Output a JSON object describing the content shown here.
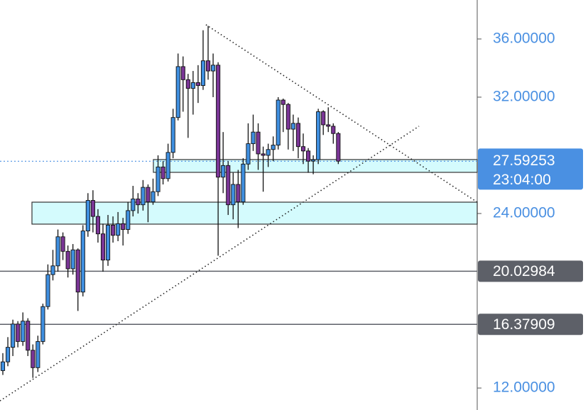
{
  "chart_data": {
    "type": "candlestick",
    "ylim": [
      10.49,
      38.68
    ],
    "yticks": [
      {
        "value": 36,
        "label": "36.00000"
      },
      {
        "value": 32,
        "label": "32.00000"
      },
      {
        "value": 24,
        "label": "24.00000"
      },
      {
        "value": 12,
        "label": "12.00000"
      }
    ],
    "tick_color": "#4a90e2",
    "up_color": "#3f8fe0",
    "down_color": "#7a3596",
    "open": [
      13.2,
      13.8,
      14.8,
      16.4,
      15.2,
      16.6,
      14.6,
      13.4,
      15.2,
      17.6,
      19.8,
      20.4,
      22.4,
      21.4,
      20.2,
      21.5,
      18.6,
      22.8,
      24.9,
      23.8,
      22.6,
      20.8,
      23.2,
      22.5,
      23.3,
      22.9,
      24.2,
      25.0,
      24.6,
      25.8,
      24.8,
      25.5,
      27.2,
      26.4,
      28.2,
      30.6,
      34.1,
      33.2,
      32.6,
      33.0,
      32.8,
      34.5,
      33.8,
      34.2,
      26.5,
      27.3,
      24.6,
      26.0,
      24.8,
      27.4,
      28.8,
      29.6,
      28.1,
      28.0,
      28.4,
      28.7,
      31.8,
      31.5,
      29.8,
      30.2,
      28.6,
      28.3,
      27.6,
      27.7,
      31.0,
      30.1,
      30.0,
      29.5
    ],
    "high": [
      14.4,
      15.5,
      16.7,
      16.6,
      17.2,
      16.8,
      15.0,
      15.6,
      17.8,
      20.5,
      21.5,
      22.9,
      22.7,
      21.8,
      21.9,
      21.6,
      23.2,
      25.4,
      25.6,
      24.3,
      23.3,
      23.9,
      23.8,
      24.1,
      23.7,
      24.8,
      25.9,
      25.4,
      26.3,
      26.0,
      26.4,
      28.0,
      27.6,
      28.8,
      31.2,
      35.0,
      34.8,
      33.6,
      33.8,
      34.2,
      36.6,
      36.9,
      35.0,
      34.4,
      29.6,
      27.6,
      26.8,
      27.0,
      27.8,
      30.2,
      30.8,
      30.2,
      28.6,
      28.8,
      29.3,
      32.0,
      31.9,
      31.6,
      30.8,
      30.6,
      29.5,
      28.5,
      28.0,
      31.2,
      31.1,
      31.3,
      30.2,
      29.6
    ],
    "low": [
      12.9,
      13.5,
      14.2,
      14.8,
      14.9,
      14.2,
      12.7,
      13.1,
      15.0,
      17.4,
      19.4,
      20.0,
      20.8,
      19.6,
      19.8,
      17.3,
      18.3,
      22.4,
      22.7,
      22.0,
      20.0,
      20.4,
      22.0,
      22.1,
      21.8,
      22.6,
      23.8,
      24.0,
      24.2,
      23.4,
      24.6,
      25.2,
      26.0,
      26.2,
      27.8,
      30.4,
      31.0,
      29.2,
      30.8,
      31.6,
      32.5,
      33.2,
      32.0,
      21.1,
      25.4,
      23.9,
      23.6,
      23.0,
      24.6,
      27.0,
      28.3,
      27.0,
      25.5,
      27.2,
      27.6,
      28.4,
      29.6,
      28.4,
      28.3,
      27.8,
      27.4,
      26.8,
      26.7,
      27.4,
      29.4,
      29.6,
      28.8,
      27.4
    ],
    "close": [
      13.8,
      14.8,
      16.4,
      15.2,
      16.6,
      14.6,
      13.4,
      15.2,
      17.6,
      19.8,
      20.4,
      22.4,
      21.4,
      20.2,
      21.5,
      18.6,
      22.8,
      24.9,
      23.8,
      22.6,
      20.8,
      23.2,
      22.5,
      23.3,
      22.9,
      24.2,
      25.0,
      24.6,
      25.8,
      24.8,
      25.5,
      27.2,
      26.4,
      28.2,
      30.6,
      34.1,
      33.2,
      32.6,
      33.0,
      32.8,
      34.5,
      33.8,
      34.2,
      26.5,
      27.3,
      24.6,
      26.0,
      24.8,
      27.4,
      28.8,
      29.6,
      28.1,
      28.0,
      28.4,
      28.7,
      31.8,
      31.5,
      29.8,
      30.2,
      28.6,
      28.3,
      27.6,
      27.7,
      31.0,
      30.1,
      30.0,
      29.5,
      27.6
    ],
    "price_line": {
      "value": 27.59253,
      "countdown": "23:04:00",
      "color": "#4a90e2"
    },
    "levels": [
      {
        "value": 20.02984,
        "color": "#5d6068"
      },
      {
        "value": 16.37909,
        "color": "#5d6068"
      }
    ],
    "zones": [
      [
        26.83,
        27.71
      ],
      [
        23.27,
        24.78
      ]
    ],
    "zone_color": "#d4fbfd",
    "trendlines": [
      [
        36.98,
        24.78
      ],
      [
        11.12,
        30.0
      ]
    ]
  }
}
